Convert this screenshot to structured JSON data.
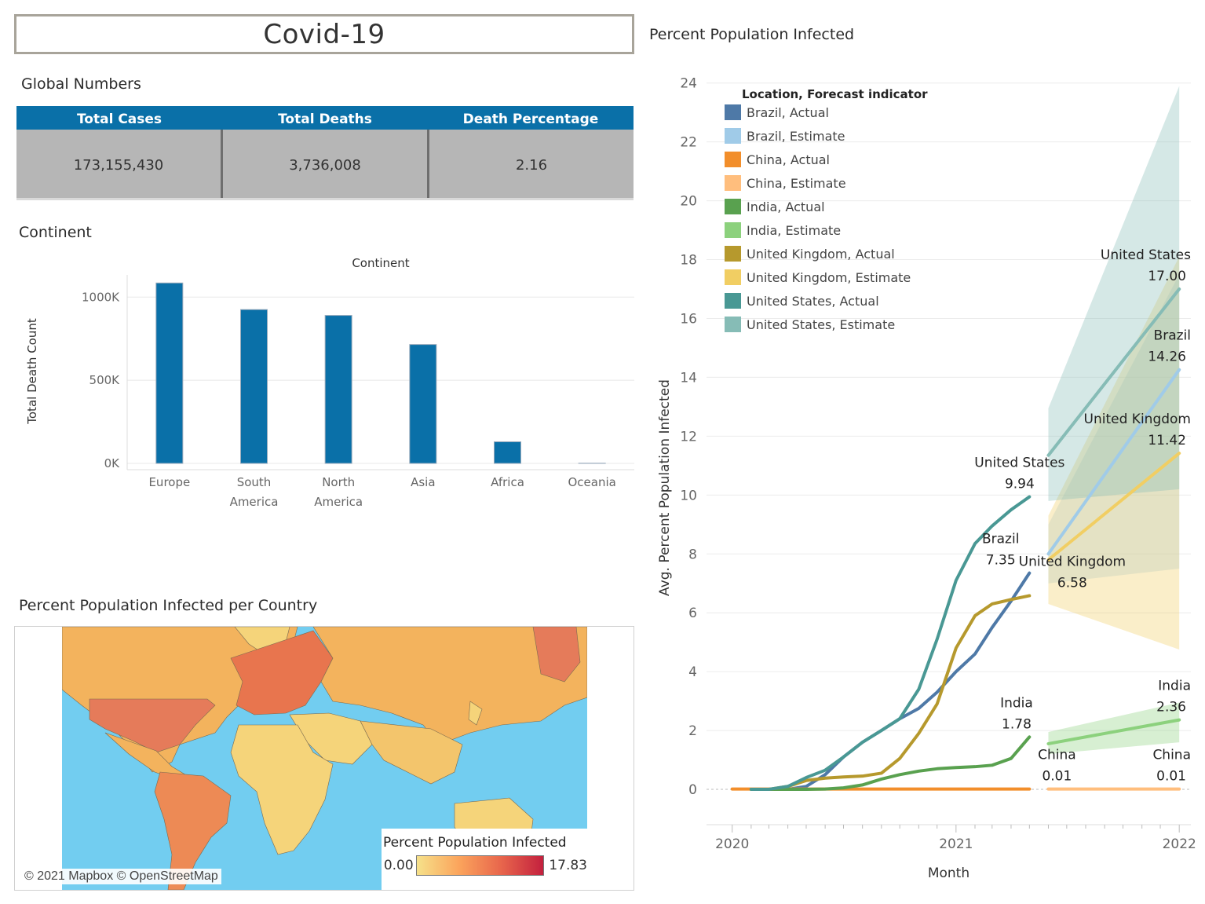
{
  "dashboard": {
    "title": "Covid-19",
    "global_title": "Global Numbers",
    "continent_title": "Continent",
    "map_title": "Percent Population Infected per Country",
    "line_title": "Percent Population Infected"
  },
  "global_numbers": {
    "headers": [
      "Total Cases",
      "Total Deaths",
      "Death Percentage"
    ],
    "values": [
      "173,155,430",
      "3,736,008",
      "2.16"
    ]
  },
  "map": {
    "attribution": "© 2021 Mapbox © OpenStreetMap",
    "legend_title": "Percent Population Infected",
    "legend_min": "0.00",
    "legend_max": "17.83",
    "colors": {
      "low": "#f6e18a",
      "mid": "#fba45c",
      "high": "#c3203e",
      "ocean": "#72cdf0"
    }
  },
  "chart_data": [
    {
      "type": "bar",
      "title": "Continent",
      "xlabel": "",
      "ylabel": "Total Death Count",
      "categories": [
        "Europe",
        "South America",
        "North America",
        "Asia",
        "Africa",
        "Oceania"
      ],
      "category_lines": [
        [
          "Europe"
        ],
        [
          "South",
          "America"
        ],
        [
          "North",
          "America"
        ],
        [
          "Asia"
        ],
        [
          "Africa"
        ],
        [
          "Oceania"
        ]
      ],
      "values": [
        1085000,
        925000,
        890000,
        715000,
        130000,
        1000
      ],
      "ylim": [
        0,
        1110000
      ],
      "yticks": [
        0,
        500000,
        1000000
      ],
      "ytick_labels": [
        "0K",
        "500K",
        "1000K"
      ],
      "color": "#0a70a8",
      "grid": true
    },
    {
      "type": "line",
      "title": "",
      "xlabel": "Month",
      "ylabel": "Avg. Percent Population Infected",
      "xlim": [
        "2019-11-20",
        "2022-01-20"
      ],
      "ylim": [
        -1.2,
        24.9
      ],
      "yticks": [
        0,
        2,
        4,
        6,
        8,
        10,
        12,
        14,
        16,
        18,
        20,
        22,
        24
      ],
      "xticks": [
        "2020-01-01",
        "2021-01-01",
        "2022-01-01"
      ],
      "xtick_labels": [
        "2020",
        "2021",
        "2022"
      ],
      "grid": true,
      "legend": {
        "title": "Location, Forecast indicator",
        "placement": "top-left",
        "items": [
          "Brazil, Actual",
          "Brazil, Estimate",
          "China, Actual",
          "China, Estimate",
          "India, Actual",
          "India, Estimate",
          "United Kingdom, Actual",
          "United Kingdom, Estimate",
          "United States, Actual",
          "United States, Estimate"
        ],
        "colors": [
          "#4e79a7",
          "#a0cbe8",
          "#f28e2b",
          "#ffbe7d",
          "#59a14f",
          "#8cd17d",
          "#b6992d",
          "#f1ce63",
          "#499894",
          "#86bcb6"
        ]
      },
      "series": [
        {
          "name": "Brazil, Actual",
          "color": "#4e79a7",
          "x": [
            "2020-02-01",
            "2020-03-01",
            "2020-04-01",
            "2020-05-01",
            "2020-06-01",
            "2020-07-01",
            "2020-08-01",
            "2020-09-01",
            "2020-10-01",
            "2020-11-01",
            "2020-12-01",
            "2021-01-01",
            "2021-02-01",
            "2021-03-01",
            "2021-04-01",
            "2021-05-01"
          ],
          "y": [
            0,
            0,
            0,
            0.1,
            0.5,
            1.1,
            1.6,
            2.0,
            2.4,
            2.75,
            3.3,
            4.0,
            4.6,
            5.5,
            6.4,
            7.35
          ]
        },
        {
          "name": "China, Actual",
          "color": "#f28e2b",
          "x": [
            "2020-01-01",
            "2021-05-01"
          ],
          "y": [
            0.01,
            0.01
          ]
        },
        {
          "name": "India, Actual",
          "color": "#59a14f",
          "x": [
            "2020-02-01",
            "2020-03-01",
            "2020-04-01",
            "2020-05-01",
            "2020-06-01",
            "2020-07-01",
            "2020-08-01",
            "2020-09-01",
            "2020-10-01",
            "2020-11-01",
            "2020-12-01",
            "2021-01-01",
            "2021-02-01",
            "2021-03-01",
            "2021-04-01",
            "2021-05-01"
          ],
          "y": [
            0,
            0,
            0,
            0,
            0.01,
            0.05,
            0.15,
            0.35,
            0.5,
            0.62,
            0.7,
            0.74,
            0.77,
            0.82,
            1.05,
            1.78
          ]
        },
        {
          "name": "United Kingdom, Actual",
          "color": "#b6992d",
          "x": [
            "2020-02-01",
            "2020-03-01",
            "2020-04-01",
            "2020-05-01",
            "2020-06-01",
            "2020-07-01",
            "2020-08-01",
            "2020-09-01",
            "2020-10-01",
            "2020-11-01",
            "2020-12-01",
            "2021-01-01",
            "2021-02-01",
            "2021-03-01",
            "2021-04-01",
            "2021-05-01"
          ],
          "y": [
            0,
            0,
            0.1,
            0.3,
            0.38,
            0.42,
            0.45,
            0.55,
            1.05,
            1.9,
            2.9,
            4.8,
            5.9,
            6.3,
            6.45,
            6.58
          ]
        },
        {
          "name": "United States, Actual",
          "color": "#499894",
          "x": [
            "2020-02-01",
            "2020-03-01",
            "2020-04-01",
            "2020-05-01",
            "2020-06-01",
            "2020-07-01",
            "2020-08-01",
            "2020-09-01",
            "2020-10-01",
            "2020-11-01",
            "2020-12-01",
            "2021-01-01",
            "2021-02-01",
            "2021-03-01",
            "2021-04-01",
            "2021-05-01"
          ],
          "y": [
            0,
            0,
            0.1,
            0.4,
            0.65,
            1.1,
            1.6,
            2.0,
            2.4,
            3.4,
            5.1,
            7.1,
            8.35,
            8.95,
            9.5,
            9.94
          ]
        },
        {
          "name": "Brazil, Estimate",
          "color": "#a0cbe8",
          "x": [
            "2021-06-01",
            "2022-01-01"
          ],
          "y": [
            8.0,
            14.26
          ],
          "band_low": [
            7.0,
            7.5
          ],
          "band_high": [
            9.0,
            17.5
          ]
        },
        {
          "name": "China, Estimate",
          "color": "#ffbe7d",
          "x": [
            "2021-06-01",
            "2022-01-01"
          ],
          "y": [
            0.01,
            0.01
          ]
        },
        {
          "name": "India, Estimate",
          "color": "#8cd17d",
          "x": [
            "2021-06-01",
            "2022-01-01"
          ],
          "y": [
            1.55,
            2.36
          ],
          "band_low": [
            1.2,
            1.6
          ],
          "band_high": [
            1.95,
            2.95
          ]
        },
        {
          "name": "United Kingdom, Estimate",
          "color": "#f1ce63",
          "x": [
            "2021-06-01",
            "2022-01-01"
          ],
          "y": [
            7.8,
            11.42
          ],
          "band_low": [
            6.3,
            4.75
          ],
          "band_high": [
            9.3,
            18.1
          ]
        },
        {
          "name": "United States, Estimate",
          "color": "#86bcb6",
          "x": [
            "2021-06-01",
            "2022-01-01"
          ],
          "y": [
            11.35,
            17.0
          ],
          "band_low": [
            9.8,
            10.2
          ],
          "band_high": [
            12.95,
            23.9
          ]
        }
      ],
      "annotations": [
        {
          "name": "United States",
          "value": "9.94",
          "x": "2021-04-15",
          "y": 9.94
        },
        {
          "name": "Brazil",
          "value": "7.35",
          "x": "2021-03-15",
          "y": 7.35
        },
        {
          "name": "United Kingdom",
          "value": "6.58",
          "x": "2021-07-10",
          "y": 6.58
        },
        {
          "name": "India",
          "value": "1.78",
          "x": "2021-04-10",
          "y": 1.78
        },
        {
          "name": "China",
          "value": "0.01",
          "x": "2021-06-15",
          "y": 0.01
        },
        {
          "name": "United States",
          "value": "17.00",
          "x": "2021-12-25",
          "y": 17.0
        },
        {
          "name": "Brazil",
          "value": "14.26",
          "x": "2022-01-05",
          "y": 14.26
        },
        {
          "name": "United Kingdom",
          "value": "11.42",
          "x": "2021-12-20",
          "y": 11.42
        },
        {
          "name": "India",
          "value": "2.36",
          "x": "2022-01-05",
          "y": 2.36
        },
        {
          "name": "China",
          "value": "0.01",
          "x": "2022-01-05",
          "y": 0.01
        }
      ]
    }
  ]
}
